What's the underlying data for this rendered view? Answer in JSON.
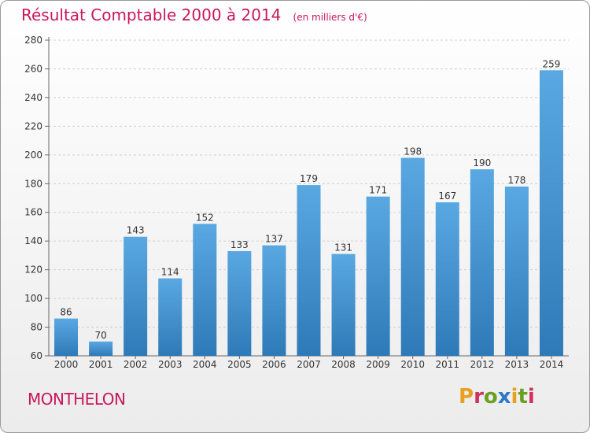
{
  "header": {
    "title": "Résultat Comptable 2000 à 2014",
    "unit": "(en milliers d'€)"
  },
  "footer": {
    "city": "MONTHELON",
    "logo": "Proxiti"
  },
  "colors": {
    "title": "#c8185c",
    "bar_light": "#5aa8e2",
    "bar_dark": "#2e7ab8",
    "grid": "#cfcfcf",
    "logo_letters": [
      "#e8a020",
      "#d03060",
      "#6aa020",
      "#2a7ac8",
      "#e8a020",
      "#6aa020",
      "#d03060"
    ]
  },
  "chart_data": {
    "type": "bar",
    "title": "Résultat Comptable 2000 à 2014",
    "ylabel": "en milliers d'€",
    "xlabel": "",
    "categories": [
      "2000",
      "2001",
      "2002",
      "2003",
      "2004",
      "2005",
      "2006",
      "2007",
      "2008",
      "2009",
      "2010",
      "2011",
      "2012",
      "2013",
      "2014"
    ],
    "values": [
      86,
      70,
      143,
      114,
      152,
      133,
      137,
      179,
      131,
      171,
      198,
      167,
      190,
      178,
      259
    ],
    "ylim": [
      60,
      280
    ],
    "yticks": [
      60,
      80,
      100,
      120,
      140,
      160,
      180,
      200,
      220,
      240,
      260,
      280
    ],
    "grid": true
  }
}
